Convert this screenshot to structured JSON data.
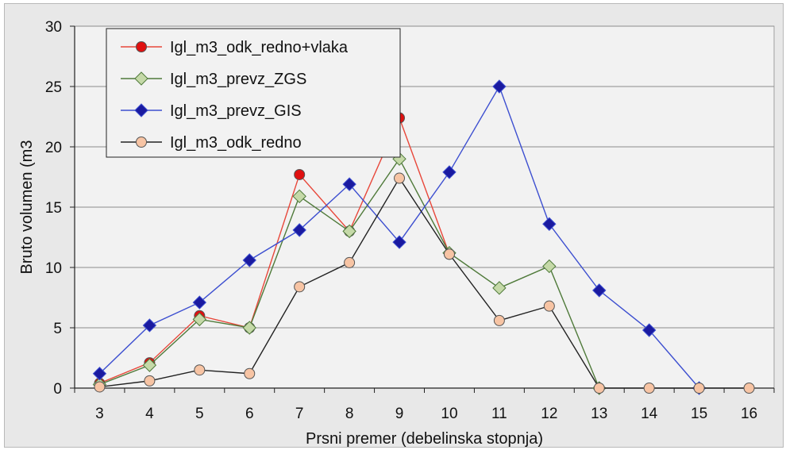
{
  "chart_data": {
    "type": "line",
    "title": "",
    "xlabel": "Prsni premer  (debelinska stopnja)",
    "ylabel": "Bruto volumen (m3",
    "x": [
      3,
      4,
      5,
      6,
      7,
      8,
      9,
      10,
      11,
      12,
      13,
      14,
      15,
      16
    ],
    "ylim": [
      0,
      30
    ],
    "yticks": [
      0,
      5,
      10,
      15,
      20,
      25,
      30
    ],
    "grid": "horizontal",
    "legend_position": "top-left",
    "series": [
      {
        "name": "Igl_m3_odk_redno+vlaka",
        "color": "#e8473a",
        "marker": "circle",
        "marker_fill": "#e01010",
        "values": [
          0.4,
          2.1,
          6.0,
          5.0,
          17.7,
          13.0,
          22.4,
          11.1,
          null,
          null,
          null,
          null,
          null,
          null
        ]
      },
      {
        "name": "Igl_m3_prevz_ZGS",
        "color": "#4f7a3a",
        "marker": "diamond",
        "marker_fill": "#c5d9a8",
        "values": [
          0.3,
          1.9,
          5.7,
          5.0,
          15.9,
          13.0,
          19.0,
          11.2,
          8.3,
          10.1,
          0,
          null,
          null,
          null
        ]
      },
      {
        "name": "Igl_m3_prevz_GIS",
        "color": "#3d4fd0",
        "marker": "diamond",
        "marker_fill": "#1a1aa0",
        "values": [
          1.2,
          5.2,
          7.1,
          10.6,
          13.1,
          16.9,
          12.1,
          17.9,
          25.0,
          13.6,
          8.1,
          4.8,
          0,
          null
        ]
      },
      {
        "name": "Igl_m3_odk_redno",
        "color": "#222222",
        "marker": "circle",
        "marker_fill": "#f7c4a4",
        "values": [
          0.1,
          0.6,
          1.5,
          1.2,
          8.4,
          10.4,
          17.4,
          11.1,
          5.6,
          6.8,
          0,
          0,
          0,
          0
        ]
      }
    ]
  }
}
